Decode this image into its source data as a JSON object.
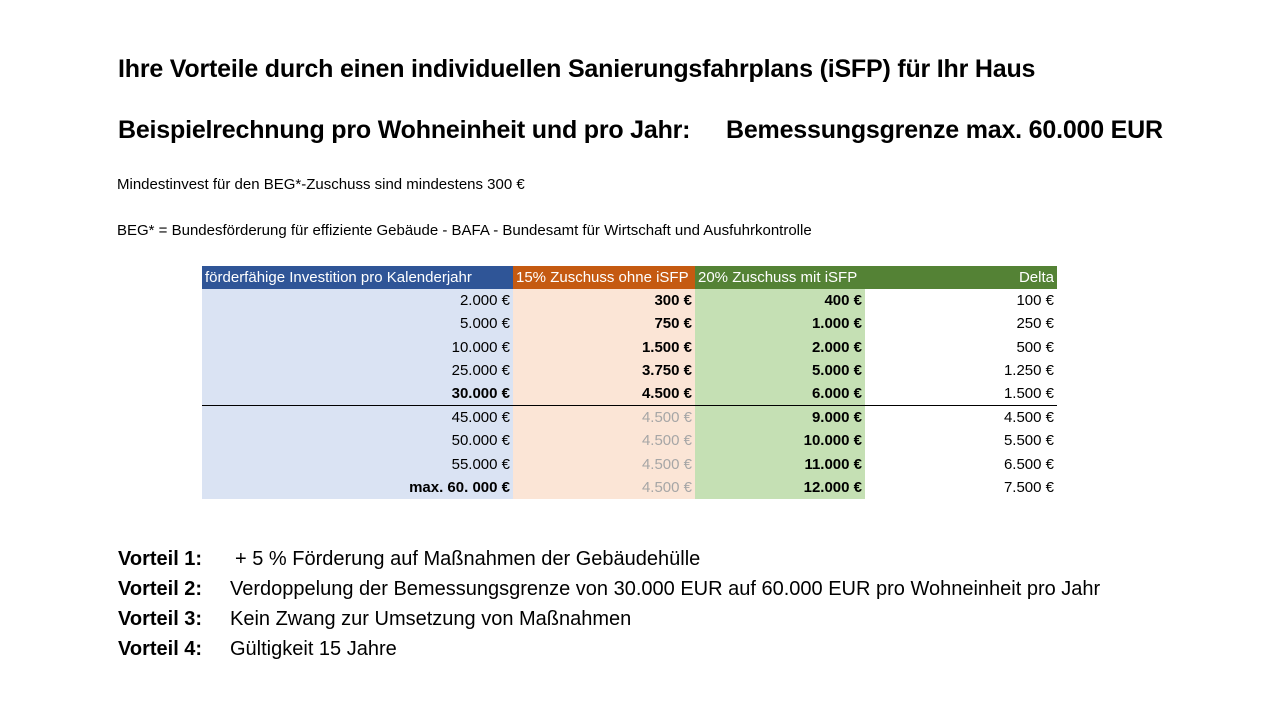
{
  "title": "Ihre Vorteile durch einen individuellen Sanierungsfahrplans (iSFP) für Ihr Haus",
  "subtitle_left": "Beispielrechnung pro Wohneinheit und pro Jahr:",
  "subtitle_right": "Bemessungsgrenze max. 60.000 EUR",
  "note1": "Mindestinvest für den BEG*-Zuschuss sind mindestens 300 €",
  "note2": "BEG* = Bundesförderung für effiziente Gebäude - BAFA - Bundesamt für Wirtschaft und Ausfuhrkontrolle",
  "colors": {
    "blue_header": "#2f5597",
    "orange_header": "#c55a11",
    "green_header": "#548235",
    "blue_cell": "#dae3f3",
    "orange_cell": "#fbe5d6",
    "green_cell": "#c5e0b4"
  },
  "table": {
    "headers": [
      "förderfähige Investition pro Kalenderjahr",
      "15% Zuschuss ohne iSFP",
      "20% Zuschuss mit iSFP",
      "Delta"
    ],
    "rows": [
      [
        "2.000 €",
        "300 €",
        "400 €",
        "100 €"
      ],
      [
        "5.000 €",
        "750 €",
        "1.000 €",
        "250 €"
      ],
      [
        "10.000 €",
        "1.500 €",
        "2.000 €",
        "500 €"
      ],
      [
        "25.000 €",
        "3.750 €",
        "5.000 €",
        "1.250 €"
      ],
      [
        "30.000 €",
        "4.500 €",
        "6.000 €",
        "1.500 €"
      ],
      [
        "45.000 €",
        "4.500 €",
        "9.000 €",
        "4.500 €"
      ],
      [
        "50.000 €",
        "4.500 €",
        "10.000 €",
        "5.500 €"
      ],
      [
        "55.000 €",
        "4.500 €",
        "11.000 €",
        "6.500 €"
      ],
      [
        "max. 60. 000 €",
        "4.500 €",
        "12.000 €",
        "7.500 €"
      ]
    ]
  },
  "advantages": [
    {
      "label": "Vorteil 1:",
      "text": "+ 5 % Förderung auf Maßnahmen der Gebäudehülle"
    },
    {
      "label": "Vorteil 2:",
      "text": "Verdoppelung der Bemessungsgrenze von 30.000 EUR auf 60.000 EUR pro Wohneinheit pro Jahr"
    },
    {
      "label": "Vorteil 3:",
      "text": "Kein Zwang zur Umsetzung von Maßnahmen"
    },
    {
      "label": "Vorteil 4:",
      "text": "Gültigkeit 15 Jahre"
    }
  ]
}
